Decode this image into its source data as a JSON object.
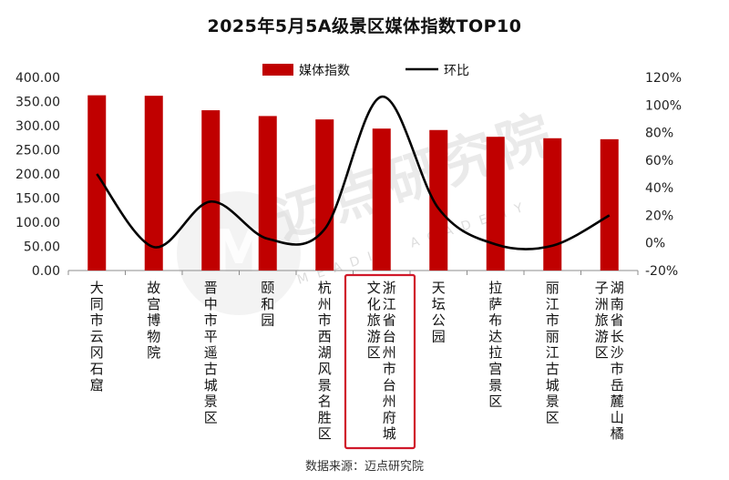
{
  "chart_data": {
    "type": "bar",
    "title": "2025年5月5A级景区媒体指数TOP10",
    "categories": [
      "大同市云冈石窟",
      "故宫博物院",
      "晋中市平遥古城景区",
      "颐和园",
      "杭州市西湖风景名胜区",
      "浙江省台州市台州府城文化旅游区",
      "天坛公园",
      "拉萨布达拉宫景区",
      "丽江市丽江古城景区",
      "湖南省长沙市岳麓山橘子洲旅游区"
    ],
    "series": [
      {
        "name": "媒体指数",
        "axis": "left",
        "type": "bar",
        "color": "#C00000",
        "values": [
          363,
          362,
          332,
          320,
          313,
          294,
          291,
          277,
          274,
          272
        ]
      },
      {
        "name": "环比",
        "axis": "right",
        "type": "line",
        "color": "#000000",
        "values": [
          50,
          -3,
          30,
          3,
          10,
          106,
          25,
          -1,
          -2,
          20
        ]
      }
    ],
    "y_left": {
      "ylim": [
        0,
        400
      ],
      "ticks": [
        "0.00",
        "50.00",
        "100.00",
        "150.00",
        "200.00",
        "250.00",
        "300.00",
        "350.00",
        "400.00"
      ]
    },
    "y_right": {
      "ylim": [
        -20,
        120
      ],
      "ticks": [
        "-20%",
        "0%",
        "20%",
        "40%",
        "60%",
        "80%",
        "100%",
        "120%"
      ]
    },
    "highlighted_category": "浙江省台州市台州府城文化旅游区",
    "highlight_color": "#D0182A",
    "legend_position": "top",
    "grid": false
  },
  "watermark": {
    "text": "迈点研究院",
    "subtext": "MEADIN ACADEMY",
    "logo_letter": "M"
  },
  "source": "数据来源：迈点研究院"
}
